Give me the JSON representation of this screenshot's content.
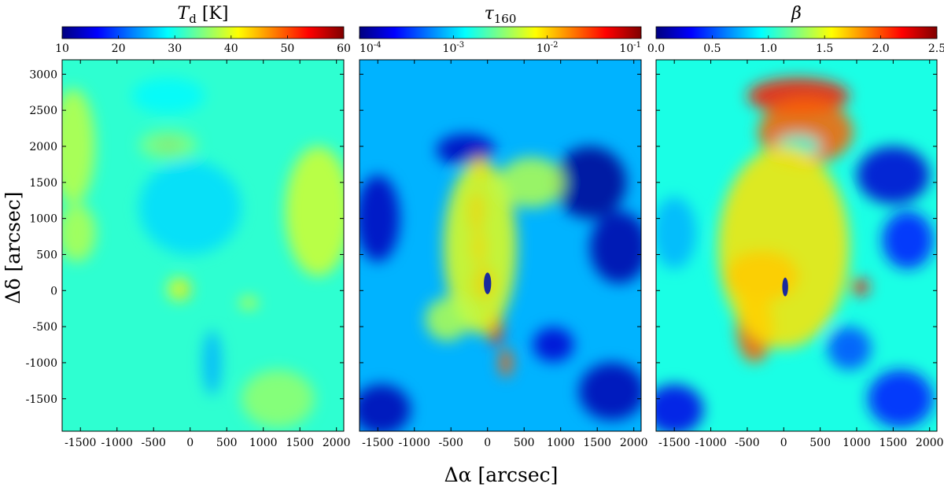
{
  "figure": {
    "xlabel": "Δα [arcsec]",
    "ylabel": "Δδ [arcsec]"
  },
  "chart_data": [
    {
      "type": "heatmap",
      "title": "T_d [K]",
      "title_main": "T",
      "title_sub": "d",
      "title_suffix": " [K]",
      "colormap": "jet",
      "colorbar": {
        "scale": "linear",
        "range": [
          10,
          60
        ],
        "ticks": [
          10,
          20,
          30,
          40,
          50,
          60
        ],
        "tick_labels": [
          "10",
          "20",
          "30",
          "40",
          "50",
          "60"
        ]
      },
      "xlim": [
        -1750,
        2100
      ],
      "ylim": [
        -1950,
        3200
      ],
      "x_ticks": [
        -1500,
        -1000,
        -500,
        0,
        500,
        1000,
        1500,
        2000
      ],
      "x_tick_labels": [
        "-1500",
        "-1000",
        "-500",
        "0",
        "500",
        "1000",
        "1500",
        "2000"
      ],
      "y_ticks": [
        -1500,
        -1000,
        -500,
        0,
        500,
        1000,
        1500,
        2000,
        2500,
        3000
      ],
      "y_tick_labels": [
        "-1500",
        "-1000",
        "-500",
        "0",
        "500",
        "1000",
        "1500",
        "2000",
        "2500",
        "3000"
      ],
      "background_level": 0.42,
      "features": [
        {
          "x": -80,
          "y": 0,
          "rx": 60,
          "ry": 90,
          "level": 1.0
        },
        {
          "x": -150,
          "y": 20,
          "rx": 160,
          "ry": 160,
          "level": 0.6
        },
        {
          "x": -300,
          "y": 2020,
          "rx": 180,
          "ry": 60,
          "level": 0.92
        },
        {
          "x": -300,
          "y": 2020,
          "rx": 400,
          "ry": 200,
          "level": 0.5
        },
        {
          "x": 800,
          "y": -170,
          "rx": 120,
          "ry": 70,
          "level": 0.62
        },
        {
          "x": 1750,
          "y": 1100,
          "rx": 450,
          "ry": 900,
          "level": 0.58
        },
        {
          "x": -1600,
          "y": 2000,
          "rx": 300,
          "ry": 800,
          "level": 0.56
        },
        {
          "x": -1550,
          "y": 800,
          "rx": 260,
          "ry": 400,
          "level": 0.55
        },
        {
          "x": 300,
          "y": -1000,
          "rx": 130,
          "ry": 450,
          "level": 0.3
        },
        {
          "x": 0,
          "y": 1150,
          "rx": 700,
          "ry": 650,
          "level": 0.34
        },
        {
          "x": -300,
          "y": 2700,
          "rx": 500,
          "ry": 250,
          "level": 0.37
        },
        {
          "x": 1200,
          "y": -1500,
          "rx": 500,
          "ry": 400,
          "level": 0.52
        }
      ]
    },
    {
      "type": "heatmap",
      "title": "τ_160",
      "title_main": "τ",
      "title_sub": "160",
      "title_suffix": "",
      "colormap": "jet",
      "colorbar": {
        "scale": "log",
        "range": [
          0.0001,
          0.1
        ],
        "ticks": [
          0.0001,
          0.001,
          0.01,
          0.1
        ],
        "tick_bases": [
          "10",
          "10",
          "10",
          "10"
        ],
        "tick_exponents": [
          "-4",
          "-3",
          "-2",
          "-1"
        ]
      },
      "xlim": [
        -1750,
        2100
      ],
      "ylim": [
        -1950,
        3200
      ],
      "x_ticks": [
        -1500,
        -1000,
        -500,
        0,
        500,
        1000,
        1500,
        2000
      ],
      "x_tick_labels": [
        "-1500",
        "-1000",
        "-500",
        "0",
        "500",
        "1000",
        "1500",
        "2000"
      ],
      "y_ticks": [
        -1500,
        -1000,
        -500,
        0,
        500,
        1000,
        1500,
        2000,
        2500,
        3000
      ],
      "background_level": 0.3,
      "features": [
        {
          "x": 1400,
          "y": 1500,
          "rx": 500,
          "ry": 500,
          "level": 0.02
        },
        {
          "x": 1800,
          "y": 600,
          "rx": 400,
          "ry": 500,
          "level": 0.04
        },
        {
          "x": -1500,
          "y": 1000,
          "rx": 300,
          "ry": 600,
          "level": 0.06
        },
        {
          "x": -1450,
          "y": -1650,
          "rx": 400,
          "ry": 350,
          "level": 0.05
        },
        {
          "x": 1700,
          "y": -1400,
          "rx": 450,
          "ry": 400,
          "level": 0.05
        },
        {
          "x": -300,
          "y": 1950,
          "rx": 400,
          "ry": 220,
          "level": 0.06
        },
        {
          "x": 900,
          "y": -750,
          "rx": 280,
          "ry": 240,
          "level": 0.08
        },
        {
          "x": -100,
          "y": 1700,
          "rx": 110,
          "ry": 180,
          "level": 0.85
        },
        {
          "x": -150,
          "y": 1100,
          "rx": 120,
          "ry": 300,
          "level": 0.88
        },
        {
          "x": -120,
          "y": 600,
          "rx": 110,
          "ry": 250,
          "level": 0.85
        },
        {
          "x": -50,
          "y": 100,
          "rx": 170,
          "ry": 250,
          "level": 0.9
        },
        {
          "x": 100,
          "y": -500,
          "rx": 110,
          "ry": 250,
          "level": 0.85
        },
        {
          "x": 250,
          "y": -1000,
          "rx": 90,
          "ry": 200,
          "level": 0.78
        },
        {
          "x": -100,
          "y": 600,
          "rx": 500,
          "ry": 1200,
          "level": 0.6
        },
        {
          "x": -550,
          "y": -400,
          "rx": 300,
          "ry": 300,
          "level": 0.55
        },
        {
          "x": 600,
          "y": 1500,
          "rx": 450,
          "ry": 350,
          "level": 0.55
        }
      ],
      "core": {
        "x": 0,
        "y": 100,
        "rx": 50,
        "ry": 150,
        "color": "#1a2a9c"
      }
    },
    {
      "type": "heatmap",
      "title": "β",
      "title_main": "β",
      "title_sub": "",
      "title_suffix": "",
      "colormap": "jet",
      "colorbar": {
        "scale": "linear",
        "range": [
          0.0,
          2.5
        ],
        "ticks": [
          0.0,
          0.5,
          1.0,
          1.5,
          2.0,
          2.5
        ],
        "tick_labels": [
          "0.0",
          "0.5",
          "1.0",
          "1.5",
          "2.0",
          "2.5"
        ]
      },
      "xlim": [
        -1750,
        2100
      ],
      "ylim": [
        -1950,
        3200
      ],
      "x_ticks": [
        -1500,
        -1000,
        -500,
        0,
        500,
        1000,
        1500,
        2000
      ],
      "x_tick_labels": [
        "-1500",
        "-1000",
        "-500",
        "0",
        "500",
        "1000",
        "1500",
        "2000"
      ],
      "y_ticks": [
        -1500,
        -1000,
        -500,
        0,
        500,
        1000,
        1500,
        2000,
        2500,
        3000
      ],
      "background_level": 0.4,
      "features": [
        {
          "x": 200,
          "y": 2700,
          "rx": 700,
          "ry": 250,
          "level": 0.85
        },
        {
          "x": 300,
          "y": 2200,
          "rx": 650,
          "ry": 450,
          "level": 0.78
        },
        {
          "x": 200,
          "y": 2000,
          "rx": 300,
          "ry": 150,
          "level": 0.4
        },
        {
          "x": -300,
          "y": 200,
          "rx": 500,
          "ry": 350,
          "level": 0.82
        },
        {
          "x": -400,
          "y": -500,
          "rx": 250,
          "ry": 500,
          "level": 0.78
        },
        {
          "x": 0,
          "y": 600,
          "rx": 900,
          "ry": 1400,
          "level": 0.65
        },
        {
          "x": 1050,
          "y": 50,
          "rx": 120,
          "ry": 120,
          "level": 0.85
        },
        {
          "x": 1500,
          "y": 1600,
          "rx": 500,
          "ry": 400,
          "level": 0.08
        },
        {
          "x": 1700,
          "y": 700,
          "rx": 350,
          "ry": 400,
          "level": 0.15
        },
        {
          "x": -1500,
          "y": -1650,
          "rx": 400,
          "ry": 350,
          "level": 0.1
        },
        {
          "x": 900,
          "y": -800,
          "rx": 300,
          "ry": 300,
          "level": 0.2
        },
        {
          "x": 1600,
          "y": -1500,
          "rx": 450,
          "ry": 400,
          "level": 0.15
        },
        {
          "x": -1500,
          "y": 800,
          "rx": 300,
          "ry": 500,
          "level": 0.3
        }
      ],
      "core": {
        "x": 20,
        "y": 50,
        "rx": 40,
        "ry": 130,
        "color": "#1a2a9c"
      }
    }
  ]
}
